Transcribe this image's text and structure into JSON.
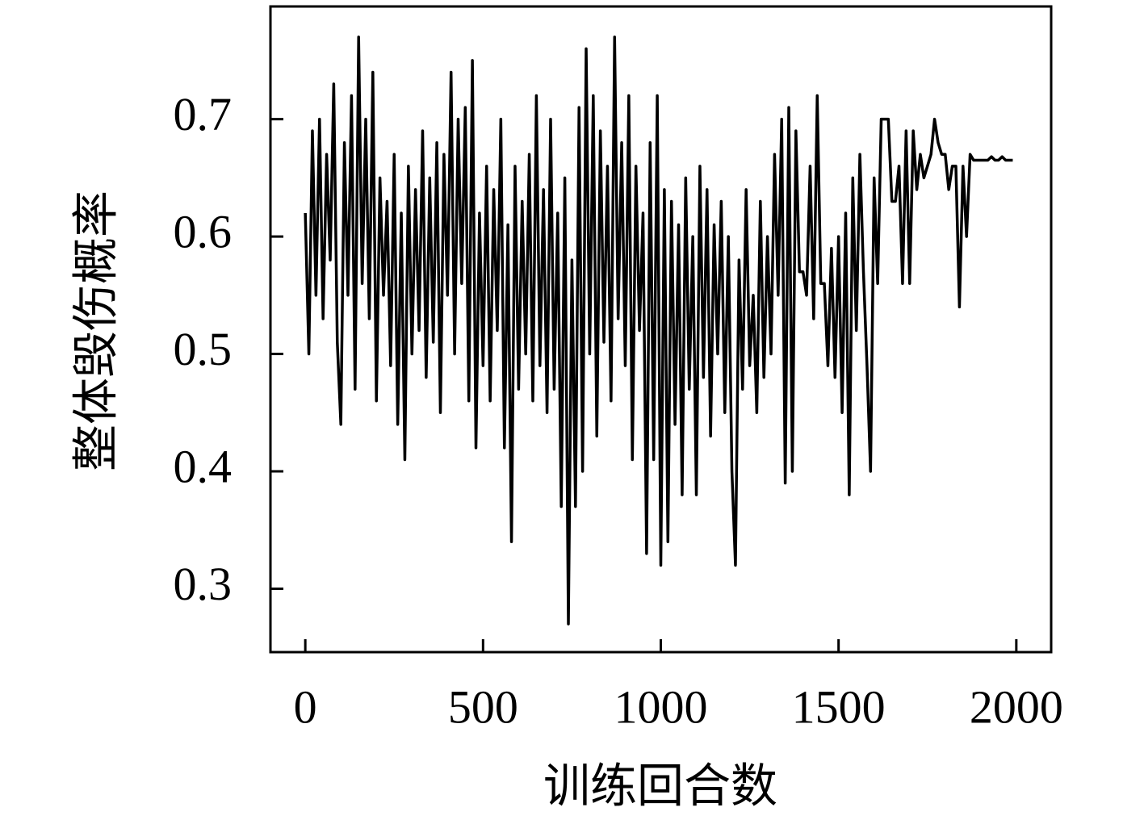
{
  "chart_data": {
    "type": "line",
    "xlabel": "训练回合数",
    "ylabel": "整体毁伤概率",
    "x": [
      0,
      10,
      20,
      30,
      40,
      50,
      60,
      70,
      80,
      90,
      100,
      110,
      120,
      130,
      140,
      150,
      160,
      170,
      180,
      190,
      200,
      210,
      220,
      230,
      240,
      250,
      260,
      270,
      280,
      290,
      300,
      310,
      320,
      330,
      340,
      350,
      360,
      370,
      380,
      390,
      400,
      410,
      420,
      430,
      440,
      450,
      460,
      470,
      480,
      490,
      500,
      510,
      520,
      530,
      540,
      550,
      560,
      570,
      580,
      590,
      600,
      610,
      620,
      630,
      640,
      650,
      660,
      670,
      680,
      690,
      700,
      710,
      720,
      730,
      740,
      750,
      760,
      770,
      780,
      790,
      800,
      810,
      820,
      830,
      840,
      850,
      860,
      870,
      880,
      890,
      900,
      910,
      920,
      930,
      940,
      950,
      960,
      970,
      980,
      990,
      1000,
      1010,
      1020,
      1030,
      1040,
      1050,
      1060,
      1070,
      1080,
      1090,
      1100,
      1110,
      1120,
      1130,
      1140,
      1150,
      1160,
      1170,
      1180,
      1190,
      1200,
      1210,
      1220,
      1230,
      1240,
      1250,
      1260,
      1270,
      1280,
      1290,
      1300,
      1310,
      1320,
      1330,
      1340,
      1350,
      1360,
      1370,
      1380,
      1390,
      1400,
      1410,
      1420,
      1430,
      1440,
      1450,
      1460,
      1470,
      1480,
      1490,
      1500,
      1510,
      1520,
      1530,
      1540,
      1550,
      1560,
      1570,
      1580,
      1590,
      1600,
      1610,
      1620,
      1630,
      1640,
      1650,
      1660,
      1670,
      1680,
      1690,
      1700,
      1710,
      1720,
      1730,
      1740,
      1750,
      1760,
      1770,
      1780,
      1790,
      1800,
      1810,
      1820,
      1830,
      1840,
      1850,
      1860,
      1870,
      1880,
      1890,
      1900,
      1910,
      1920,
      1930,
      1940,
      1950,
      1960,
      1970,
      1980,
      1990
    ],
    "series": [
      {
        "name": "整体毁伤概率",
        "color": "#000000",
        "values": [
          0.62,
          0.5,
          0.69,
          0.55,
          0.7,
          0.53,
          0.67,
          0.58,
          0.73,
          0.51,
          0.44,
          0.68,
          0.55,
          0.72,
          0.47,
          0.77,
          0.56,
          0.7,
          0.53,
          0.74,
          0.46,
          0.65,
          0.55,
          0.63,
          0.49,
          0.67,
          0.44,
          0.62,
          0.41,
          0.66,
          0.5,
          0.64,
          0.52,
          0.69,
          0.48,
          0.65,
          0.51,
          0.68,
          0.45,
          0.67,
          0.55,
          0.74,
          0.5,
          0.7,
          0.56,
          0.71,
          0.46,
          0.75,
          0.42,
          0.62,
          0.49,
          0.66,
          0.46,
          0.64,
          0.52,
          0.7,
          0.42,
          0.61,
          0.34,
          0.66,
          0.47,
          0.63,
          0.5,
          0.67,
          0.46,
          0.72,
          0.49,
          0.64,
          0.45,
          0.7,
          0.47,
          0.62,
          0.37,
          0.65,
          0.27,
          0.58,
          0.37,
          0.71,
          0.4,
          0.76,
          0.5,
          0.72,
          0.43,
          0.69,
          0.51,
          0.66,
          0.46,
          0.77,
          0.53,
          0.68,
          0.49,
          0.72,
          0.41,
          0.66,
          0.52,
          0.62,
          0.33,
          0.68,
          0.41,
          0.72,
          0.32,
          0.64,
          0.34,
          0.63,
          0.44,
          0.61,
          0.38,
          0.65,
          0.47,
          0.6,
          0.38,
          0.66,
          0.48,
          0.64,
          0.43,
          0.61,
          0.5,
          0.63,
          0.45,
          0.6,
          0.4,
          0.32,
          0.58,
          0.47,
          0.64,
          0.49,
          0.55,
          0.45,
          0.63,
          0.48,
          0.6,
          0.5,
          0.67,
          0.55,
          0.7,
          0.39,
          0.71,
          0.4,
          0.69,
          0.57,
          0.57,
          0.55,
          0.66,
          0.53,
          0.72,
          0.56,
          0.56,
          0.49,
          0.59,
          0.48,
          0.6,
          0.45,
          0.62,
          0.38,
          0.65,
          0.52,
          0.67,
          0.57,
          0.49,
          0.4,
          0.65,
          0.56,
          0.7,
          0.7,
          0.7,
          0.63,
          0.63,
          0.66,
          0.56,
          0.69,
          0.56,
          0.69,
          0.64,
          0.67,
          0.65,
          0.66,
          0.67,
          0.7,
          0.68,
          0.67,
          0.67,
          0.64,
          0.66,
          0.66,
          0.54,
          0.66,
          0.6,
          0.67,
          0.665,
          0.665,
          0.665,
          0.665,
          0.665,
          0.668,
          0.665,
          0.665,
          0.668,
          0.665,
          0.665,
          0.665
        ]
      }
    ],
    "xlim": [
      -98,
      2098
    ],
    "xticks": [
      0,
      500,
      1000,
      1500,
      2000
    ],
    "ylim": [
      0.246,
      0.796
    ],
    "yticks": [
      0.3,
      0.4,
      0.5,
      0.6,
      0.7
    ]
  }
}
